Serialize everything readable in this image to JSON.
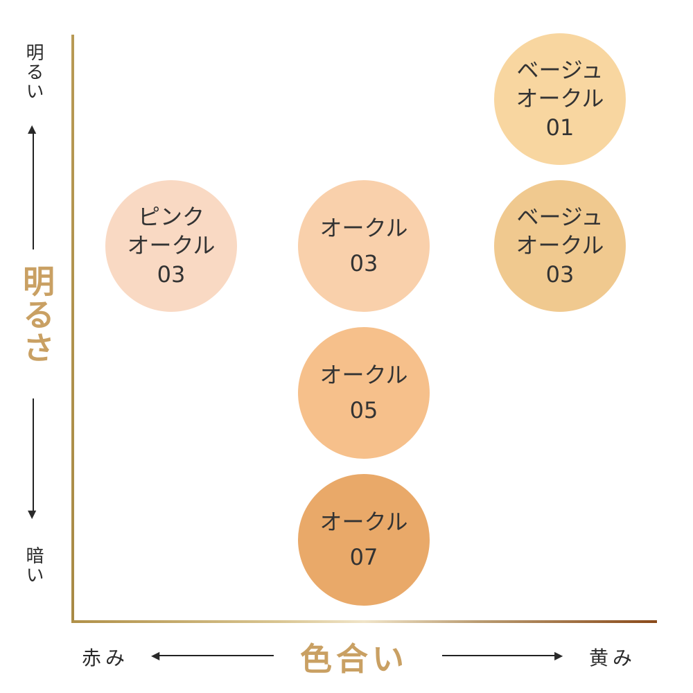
{
  "y_axis": {
    "title": "明るさ",
    "top_label": "明るい",
    "bottom_label": "暗い"
  },
  "x_axis": {
    "title": "色合い",
    "left_label": "赤み",
    "right_label": "黄み"
  },
  "shades": [
    {
      "lines": [
        "ベージュ",
        "オークル",
        "01"
      ],
      "color": "#f8d6a0"
    },
    {
      "lines": [
        "ベージュ",
        "オークル",
        "03"
      ],
      "color": "#f0c98f"
    },
    {
      "lines": [
        "ピンク",
        "オークル",
        "03"
      ],
      "color": "#f9d9c3"
    },
    {
      "lines": [
        "オークル",
        "03"
      ],
      "color": "#f9d0ab"
    },
    {
      "lines": [
        "オークル",
        "05"
      ],
      "color": "#f6c08b"
    },
    {
      "lines": [
        "オークル",
        "07"
      ],
      "color": "#e9a969"
    }
  ]
}
